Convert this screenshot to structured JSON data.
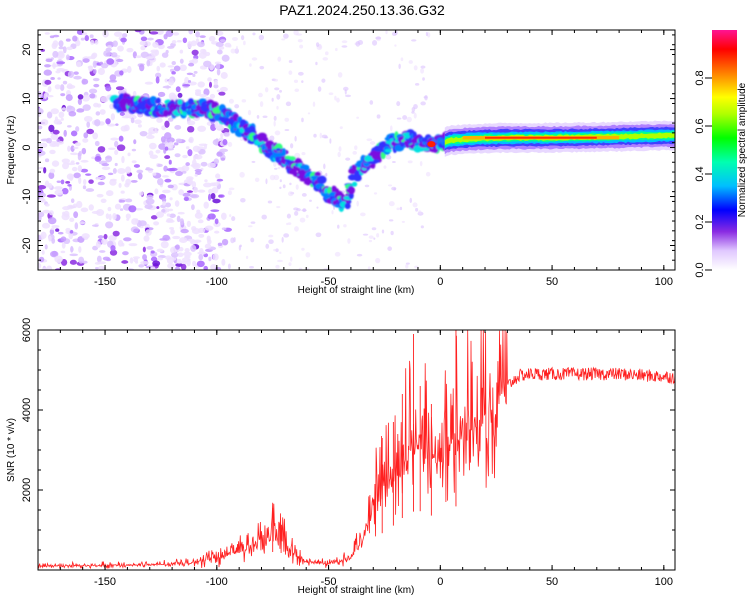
{
  "title": "PAZ1.2024.250.13.36.G32",
  "chart_data": [
    {
      "type": "heatmap",
      "xlabel": "Height of straight line (km)",
      "ylabel": "Frequency (Hz)",
      "xlim": [
        -180,
        105
      ],
      "ylim": [
        -25,
        24
      ],
      "xticks": [
        -150,
        -100,
        -50,
        0,
        50,
        100
      ],
      "yticks": [
        -20,
        -10,
        0,
        10,
        20
      ],
      "colorbar": {
        "label": "Normalized spectral amplitude",
        "ticks": [
          "0.0",
          "0.2",
          "0.4",
          "0.6",
          "0.8"
        ],
        "range": [
          0,
          1
        ],
        "colors": [
          "#ffffff",
          "#8a2be2",
          "#0000ff",
          "#00ffff",
          "#00ff00",
          "#ffff00",
          "#ff7f00",
          "#ff0000",
          "#ff1493"
        ]
      },
      "ridge": {
        "x": [
          -140,
          -120,
          -105,
          -95,
          -85,
          -78,
          -70,
          -62,
          -55,
          -48,
          -42,
          -38,
          -30,
          -22,
          -15,
          -8,
          -2,
          5,
          15,
          30,
          50,
          75,
          105
        ],
        "y": [
          9,
          8,
          8,
          6,
          3,
          0,
          -2,
          -5,
          -7,
          -10,
          -12,
          -5,
          -2,
          1,
          1.5,
          0.8,
          0.6,
          1.5,
          1.8,
          2,
          2,
          2.2,
          2.5
        ],
        "peak_x": [
          0,
          80
        ],
        "peak_y": 2
      }
    },
    {
      "type": "line",
      "xlabel": "Height of straight line (km)",
      "ylabel": "SNR (10 * v/v)",
      "xlim": [
        -180,
        105
      ],
      "ylim": [
        0,
        6000
      ],
      "xticks": [
        -150,
        -100,
        -50,
        0,
        50,
        100
      ],
      "yticks": [
        2000,
        4000,
        6000
      ],
      "color": "#ff2020",
      "envelope": {
        "x": [
          -180,
          -130,
          -110,
          -100,
          -90,
          -80,
          -75,
          -70,
          -65,
          -60,
          -50,
          -40,
          -35,
          -30,
          -25,
          -20,
          -15,
          -10,
          -5,
          0,
          5,
          10,
          15,
          20,
          25,
          30,
          35,
          40,
          50,
          60,
          80,
          105
        ],
        "y": [
          100,
          120,
          180,
          300,
          450,
          650,
          900,
          700,
          350,
          200,
          150,
          300,
          700,
          1600,
          1900,
          2300,
          2800,
          3000,
          2700,
          2800,
          3100,
          3300,
          3500,
          3900,
          4300,
          4600,
          4850,
          4900,
          4900,
          4900,
          4900,
          4820
        ]
      },
      "spikes": [
        [
          -12,
          5900
        ],
        [
          7,
          6000
        ],
        [
          -17,
          4400
        ],
        [
          -9,
          4600
        ],
        [
          -4,
          4150
        ],
        [
          -21,
          3700
        ],
        [
          -26,
          3300
        ],
        [
          -75,
          1550
        ]
      ]
    }
  ]
}
